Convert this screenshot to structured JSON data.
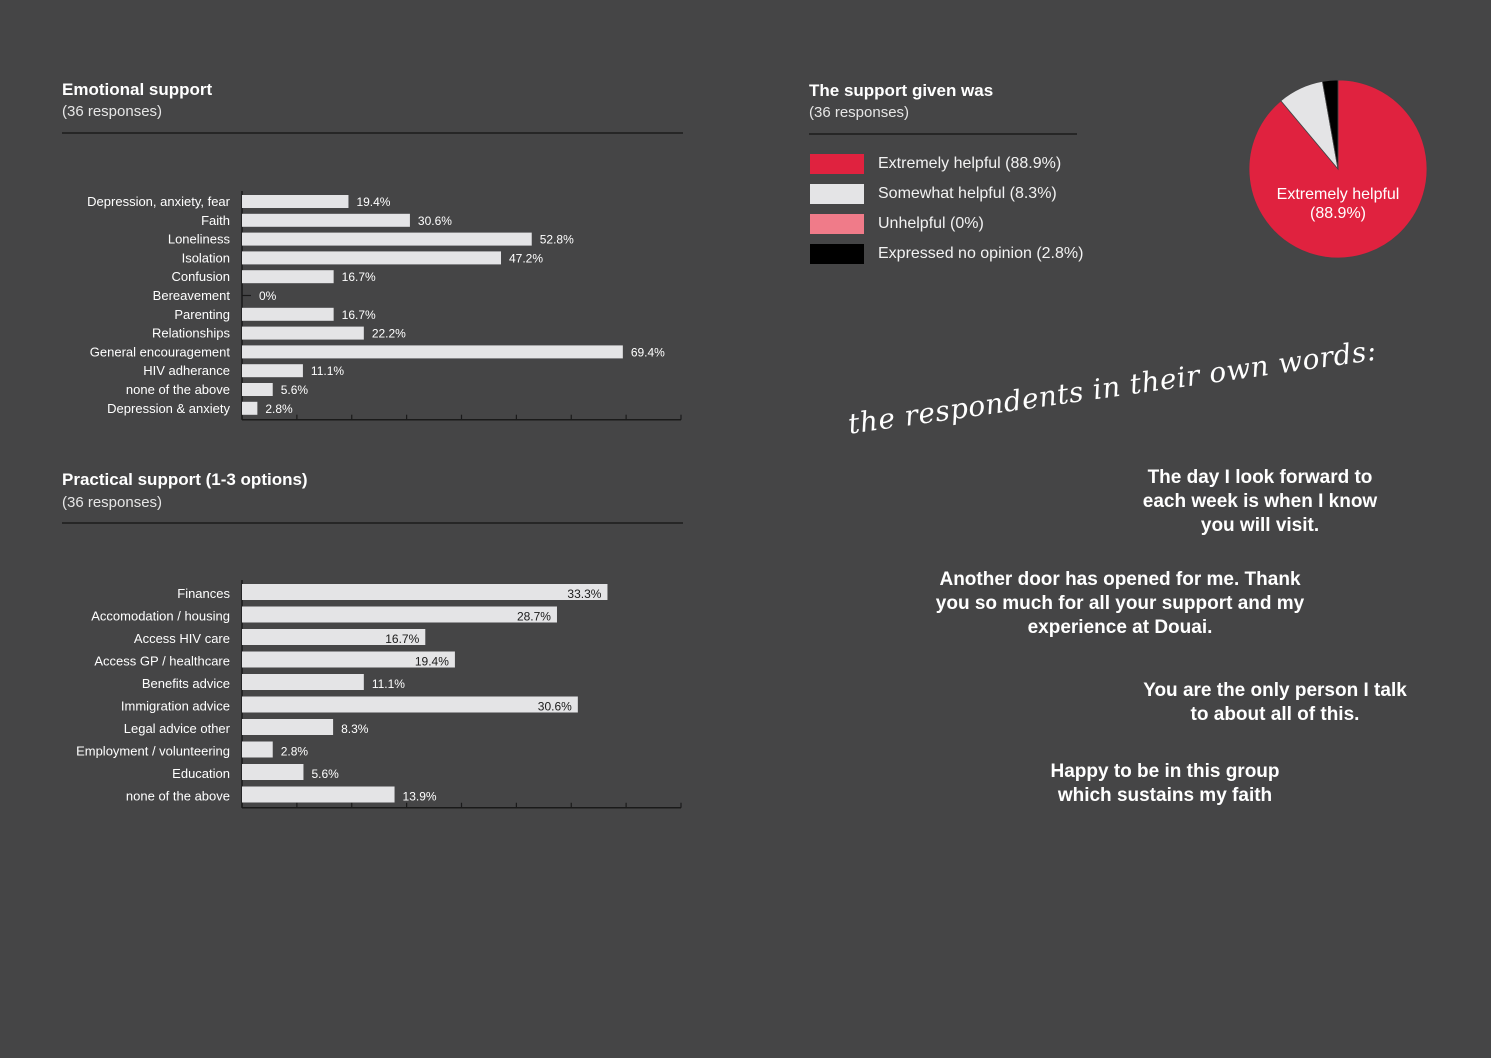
{
  "charts": {
    "emotional": {
      "title": "Emotional support",
      "subtitle": "(36 responses)"
    },
    "practical": {
      "title": "Practical support (1-3 options)",
      "subtitle": "(36 responses)"
    },
    "helpful": {
      "title": "The support given was",
      "subtitle": "(36 responses)"
    }
  },
  "chart_data": [
    {
      "type": "bar",
      "orientation": "horizontal",
      "title": "Emotional support",
      "categories": [
        "Depression, anxiety, fear",
        "Faith",
        "Loneliness",
        "Isolation",
        "Confusion",
        "Bereavement",
        "Parenting",
        "Relationships",
        "General encouragement",
        "HIV adherance",
        "none of the above",
        "Depression & anxiety"
      ],
      "values": [
        19.4,
        30.6,
        52.8,
        47.2,
        16.7,
        0,
        16.7,
        22.2,
        69.4,
        11.1,
        5.6,
        2.8
      ],
      "labels": [
        "19.4%",
        "30.6%",
        "52.8%",
        "47.2%",
        "16.7%",
        "0%",
        "16.7%",
        "22.2%",
        "69.4%",
        "11.1%",
        "5.6%",
        "2.8%"
      ],
      "xlim": [
        0,
        80
      ],
      "label_position": "outside",
      "bar_color": "#e4e4e6"
    },
    {
      "type": "bar",
      "orientation": "horizontal",
      "title": "Practical support (1-3 options)",
      "categories": [
        "Finances",
        "Accomodation / housing",
        "Access HIV care",
        "Access GP / healthcare",
        "Benefits advice",
        "Immigration advice",
        "Legal advice other",
        "Employment / volunteering",
        "Education",
        "none of the above"
      ],
      "values": [
        33.3,
        28.7,
        16.7,
        19.4,
        11.1,
        30.6,
        8.3,
        2.8,
        5.6,
        13.9
      ],
      "labels": [
        "33.3%",
        "28.7%",
        "16.7%",
        "19.4%",
        "11.1%",
        "30.6%",
        "8.3%",
        "2.8%",
        "5.6%",
        "13.9%"
      ],
      "label_inside": [
        true,
        true,
        true,
        true,
        false,
        true,
        false,
        false,
        false,
        false
      ],
      "xlim": [
        0,
        40
      ],
      "bar_color": "#e4e4e6"
    },
    {
      "type": "pie",
      "title": "The support given was",
      "slices": [
        {
          "name": "Extremely helpful (88.9%)",
          "value": 88.9,
          "color": "#e0223f"
        },
        {
          "name": "Somewhat helpful (8.3%)",
          "value": 8.3,
          "color": "#e4e4e6"
        },
        {
          "name": "Unhelpful (0%)",
          "value": 0,
          "color": "#f07b89"
        },
        {
          "name": "Expressed no opinion (2.8%)",
          "value": 2.8,
          "color": "#000000"
        }
      ],
      "slice_label": "Extremely helpful\n(88.9%)",
      "legend_position": "left"
    }
  ],
  "quotes": {
    "heading": "the respondents in their own words:",
    "items": [
      "The day I look forward to\neach week is when I know\nyou will visit.",
      "Another door has opened for me. Thank\nyou so much for all your support and my\nexperience at Douai.",
      "You are the only person I talk\nto about all of this.",
      "Happy to be in this group\nwhich sustains my faith"
    ]
  }
}
